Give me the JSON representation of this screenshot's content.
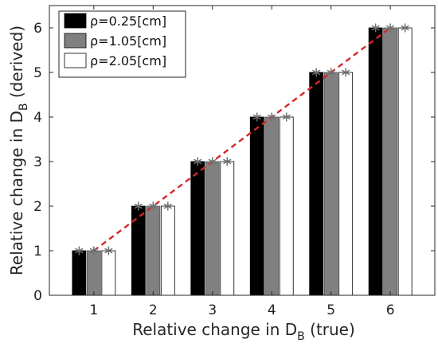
{
  "chart_data": {
    "type": "bar",
    "categories": [
      "1",
      "2",
      "3",
      "4",
      "5",
      "6"
    ],
    "series": [
      {
        "name": "ρ=0.25[cm]",
        "color": "#000000",
        "values": [
          1,
          2,
          3,
          4,
          5,
          6
        ],
        "derived_markers": [
          1,
          2,
          3,
          4,
          5,
          6
        ]
      },
      {
        "name": "ρ=1.05[cm]",
        "color": "#808080",
        "values": [
          1,
          2,
          3,
          4,
          5,
          6
        ],
        "derived_markers": [
          1,
          2,
          3,
          4,
          5,
          6
        ]
      },
      {
        "name": "ρ=2.05[cm]",
        "color": "#ffffff",
        "values": [
          1,
          2,
          3,
          4,
          5,
          6
        ],
        "derived_markers": [
          1,
          2,
          3,
          4,
          5,
          6
        ]
      }
    ],
    "reference_line": {
      "style": "dashed",
      "color": "#d62728",
      "x": [
        1,
        6
      ],
      "y": [
        1,
        6
      ]
    },
    "marker_color": "#707070",
    "ylim": [
      0,
      6.5
    ],
    "yticks": [
      "0",
      "1",
      "2",
      "3",
      "4",
      "5",
      "6"
    ],
    "xlabel": {
      "main": "Relative change in D",
      "sub": "B",
      "suffix": " (true)"
    },
    "ylabel": {
      "main": "Relative change in D",
      "sub": "B",
      "suffix": " (derived)"
    },
    "legend_position": "top-left",
    "grid": false
  }
}
